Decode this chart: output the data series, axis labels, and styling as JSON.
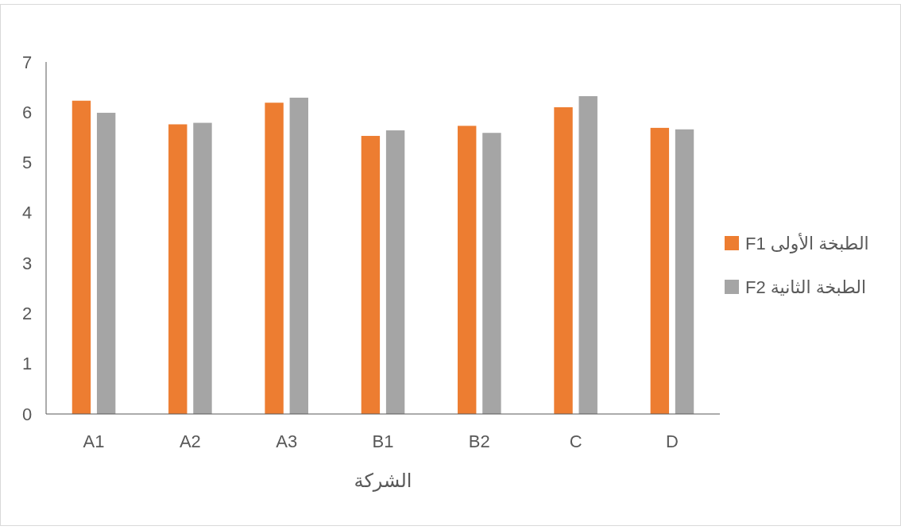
{
  "chart_data": {
    "type": "bar",
    "xlabel": "الشركة",
    "categories": [
      "A1",
      "A2",
      "A3",
      "B1",
      "B2",
      "C",
      "D"
    ],
    "series": [
      {
        "name": "الطبخة الأولى F1",
        "color": "#ed7d31",
        "values": [
          6.23,
          5.76,
          6.19,
          5.53,
          5.73,
          6.1,
          5.69
        ]
      },
      {
        "name": "الطبخة الثانية F2",
        "color": "#a5a5a5",
        "values": [
          5.99,
          5.79,
          6.29,
          5.64,
          5.59,
          6.32,
          5.66
        ]
      }
    ],
    "ylim": [
      0,
      7
    ],
    "yticks": [
      0,
      1,
      2,
      3,
      4,
      5,
      6,
      7
    ],
    "grid": false,
    "legend": "right"
  }
}
